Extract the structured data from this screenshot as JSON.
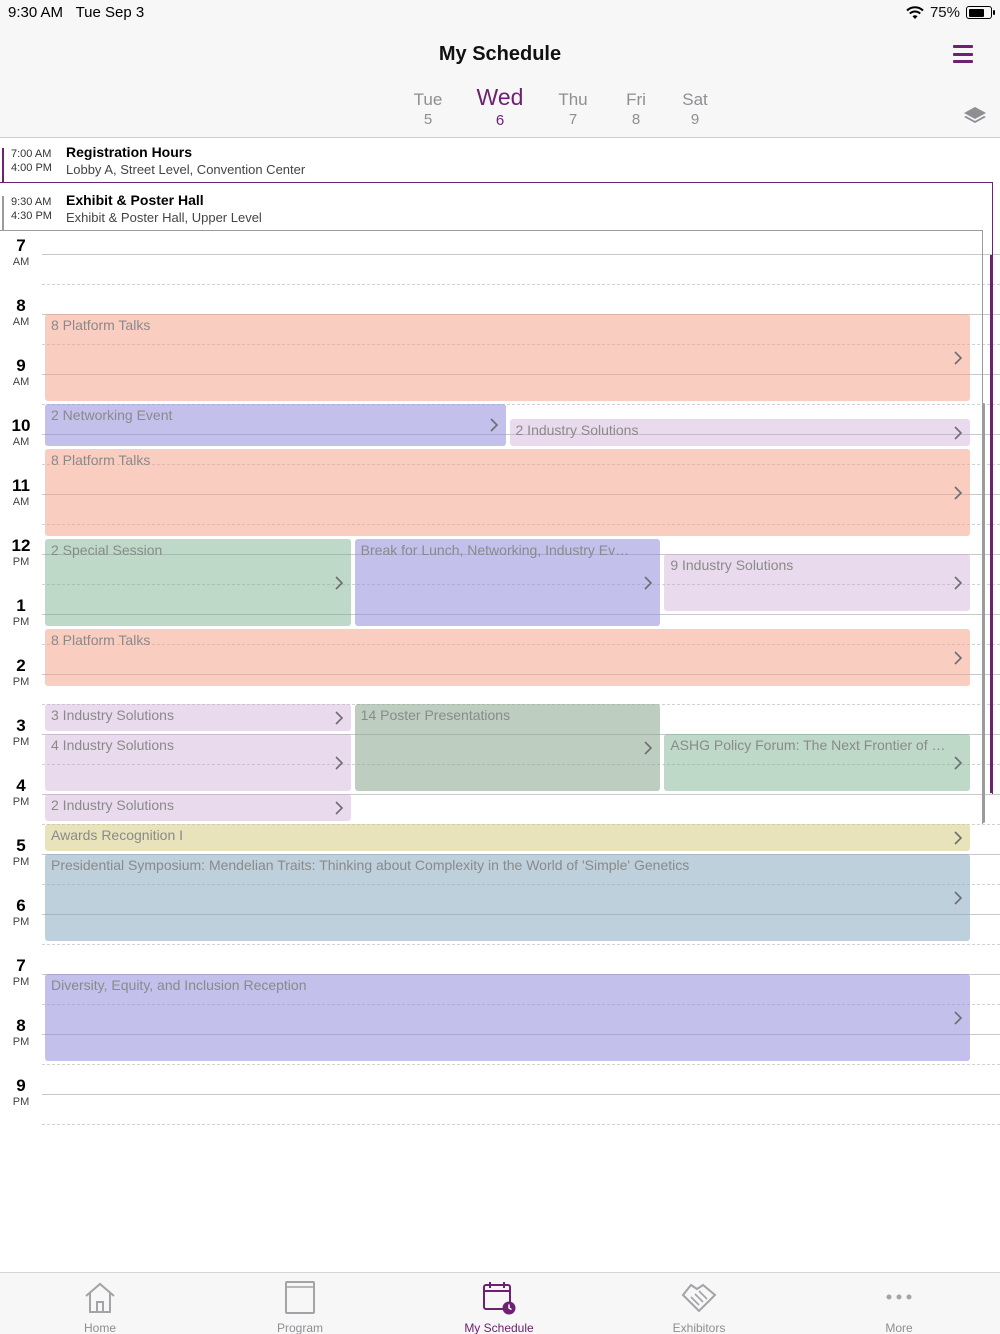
{
  "status": {
    "time": "9:30 AM",
    "date": "Tue Sep 3",
    "battery": "75%",
    "battery_level": 0.75
  },
  "header": {
    "title": "My Schedule",
    "menu_icon": "hamburger-menu-icon",
    "layers_icon": "layers-icon"
  },
  "days": [
    {
      "name": "Tue",
      "date": "5",
      "active": false
    },
    {
      "name": "Wed",
      "date": "6",
      "active": true
    },
    {
      "name": "Thu",
      "date": "7",
      "active": false
    },
    {
      "name": "Fri",
      "date": "8",
      "active": false
    },
    {
      "name": "Sat",
      "date": "9",
      "active": false
    }
  ],
  "all_day": [
    {
      "start": "7:00 AM",
      "end": "4:00 PM",
      "name": "Registration Hours",
      "location": "Lobby A, Street Level, Convention Center",
      "color": "#6e2171"
    },
    {
      "start": "9:30 AM",
      "end": "4:30 PM",
      "name": "Exhibit & Poster Hall",
      "location": "Exhibit & Poster Hall, Upper Level",
      "color": "#9b9b9b"
    }
  ],
  "hours": [
    {
      "h": "7",
      "ap": "AM"
    },
    {
      "h": "8",
      "ap": "AM"
    },
    {
      "h": "9",
      "ap": "AM"
    },
    {
      "h": "10",
      "ap": "AM"
    },
    {
      "h": "11",
      "ap": "AM"
    },
    {
      "h": "12",
      "ap": "PM"
    },
    {
      "h": "1",
      "ap": "PM"
    },
    {
      "h": "2",
      "ap": "PM"
    },
    {
      "h": "3",
      "ap": "PM"
    },
    {
      "h": "4",
      "ap": "PM"
    },
    {
      "h": "5",
      "ap": "PM"
    },
    {
      "h": "6",
      "ap": "PM"
    },
    {
      "h": "7",
      "ap": "PM"
    },
    {
      "h": "8",
      "ap": "PM"
    },
    {
      "h": "9",
      "ap": "PM"
    }
  ],
  "events": [
    {
      "label": "8 Platform Talks",
      "start": 8.0,
      "end": 9.45,
      "col": 0,
      "cols": 1,
      "color": "salmon"
    },
    {
      "label": "2 Networking Event",
      "start": 9.5,
      "end": 10.2,
      "col": 0,
      "cols": 2,
      "color": "purple"
    },
    {
      "label": "2 Industry Solutions",
      "start": 9.75,
      "end": 10.2,
      "col": 1,
      "cols": 2,
      "color": "lilac"
    },
    {
      "label": "8 Platform Talks",
      "start": 10.25,
      "end": 11.7,
      "col": 0,
      "cols": 1,
      "color": "salmon"
    },
    {
      "label": "2 Special Session",
      "start": 11.75,
      "end": 13.2,
      "col": 0,
      "cols": 3,
      "color": "green"
    },
    {
      "label": "Break for Lunch, Networking, Industry Events",
      "start": 11.75,
      "end": 13.2,
      "col": 1,
      "cols": 3,
      "color": "purple"
    },
    {
      "label": "9 Industry Solutions",
      "start": 12.0,
      "end": 12.95,
      "col": 2,
      "cols": 3,
      "color": "lilac"
    },
    {
      "label": "8 Platform Talks",
      "start": 13.25,
      "end": 14.2,
      "col": 0,
      "cols": 1,
      "color": "salmon"
    },
    {
      "label": "3 Industry Solutions",
      "start": 14.5,
      "end": 14.95,
      "col": 0,
      "cols": 3,
      "color": "lilac"
    },
    {
      "label": "14 Poster Presentations",
      "start": 14.5,
      "end": 15.95,
      "col": 1,
      "cols": 3,
      "color": "sage"
    },
    {
      "label": "4 Industry Solutions",
      "start": 15.0,
      "end": 15.95,
      "col": 0,
      "cols": 3,
      "color": "lilac"
    },
    {
      "label": "ASHG Policy Forum: The Next Frontier of Genomics Policy",
      "start": 15.0,
      "end": 15.95,
      "col": 2,
      "cols": 3,
      "color": "green"
    },
    {
      "label": "2 Industry Solutions",
      "start": 16.0,
      "end": 16.45,
      "col": 0,
      "cols": 3,
      "color": "lilac"
    },
    {
      "label": "Awards Recognition I",
      "start": 16.5,
      "end": 16.95,
      "col": 0,
      "cols": 1,
      "color": "yellow"
    },
    {
      "label": "Presidential Symposium: Mendelian Traits: Thinking about Complexity in the World of 'Simple' Genetics",
      "start": 17.0,
      "end": 18.45,
      "col": 0,
      "cols": 1,
      "color": "blue"
    },
    {
      "label": "Diversity, Equity, and Inclusion Reception",
      "start": 19.0,
      "end": 20.45,
      "col": 0,
      "cols": 1,
      "color": "purple"
    }
  ],
  "tabs": [
    {
      "label": "Home",
      "icon": "home-icon",
      "active": false
    },
    {
      "label": "Program",
      "icon": "book-icon",
      "active": false
    },
    {
      "label": "My Schedule",
      "icon": "calendar-clock-icon",
      "active": true
    },
    {
      "label": "Exhibitors",
      "icon": "handshake-icon",
      "active": false
    },
    {
      "label": "More",
      "icon": "more-dots-icon",
      "active": false
    }
  ],
  "accent_color": "#6e2171"
}
